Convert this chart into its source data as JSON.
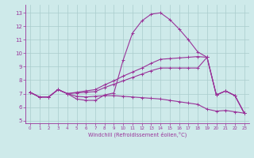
{
  "xlabel": "Windchill (Refroidissement éolien,°C)",
  "background_color": "#ceeaea",
  "line_color": "#993399",
  "grid_color": "#aacccc",
  "xlim": [
    -0.5,
    23.5
  ],
  "ylim": [
    4.8,
    13.6
  ],
  "yticks": [
    5,
    6,
    7,
    8,
    9,
    10,
    11,
    12,
    13
  ],
  "xticks": [
    0,
    1,
    2,
    3,
    4,
    5,
    6,
    7,
    8,
    9,
    10,
    11,
    12,
    13,
    14,
    15,
    16,
    17,
    18,
    19,
    20,
    21,
    22,
    23
  ],
  "series": [
    [
      7.1,
      6.75,
      6.75,
      7.3,
      7.0,
      6.6,
      6.5,
      6.5,
      6.9,
      7.05,
      9.5,
      11.5,
      12.4,
      12.9,
      13.0,
      12.5,
      11.8,
      11.0,
      10.1,
      9.7,
      6.9,
      7.2,
      6.85,
      5.55
    ],
    [
      7.1,
      6.75,
      6.75,
      7.3,
      7.0,
      7.1,
      7.2,
      7.3,
      7.65,
      7.95,
      8.3,
      8.6,
      8.9,
      9.25,
      9.55,
      9.6,
      9.65,
      9.7,
      9.75,
      9.7,
      6.9,
      7.2,
      6.85,
      5.55
    ],
    [
      7.1,
      6.75,
      6.75,
      7.3,
      7.0,
      7.05,
      7.1,
      7.15,
      7.45,
      7.7,
      7.95,
      8.2,
      8.45,
      8.7,
      8.9,
      8.9,
      8.9,
      8.9,
      8.9,
      9.7,
      6.9,
      7.2,
      6.85,
      5.55
    ],
    [
      7.1,
      6.75,
      6.75,
      7.3,
      7.0,
      6.8,
      6.75,
      6.8,
      6.85,
      6.85,
      6.8,
      6.75,
      6.7,
      6.65,
      6.6,
      6.5,
      6.4,
      6.3,
      6.2,
      5.85,
      5.7,
      5.75,
      5.65,
      5.55
    ]
  ]
}
